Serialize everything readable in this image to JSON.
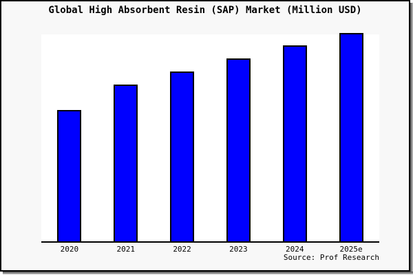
{
  "chart_data": {
    "type": "bar",
    "title": "Global High Absorbent Resin (SAP) Market (Million USD)",
    "categories": [
      "2020",
      "2021",
      "2022",
      "2023",
      "2024",
      "2025e"
    ],
    "values_pct_of_max": [
      62.8,
      75.1,
      81.4,
      87.7,
      93.9,
      100
    ],
    "xlabel": "",
    "ylabel": "",
    "y_axis_visible": false,
    "grid": false,
    "legend": false,
    "bar_color": "#0000ff",
    "bar_border_color": "#000000"
  },
  "source": {
    "text": "Source: Prof Research"
  }
}
